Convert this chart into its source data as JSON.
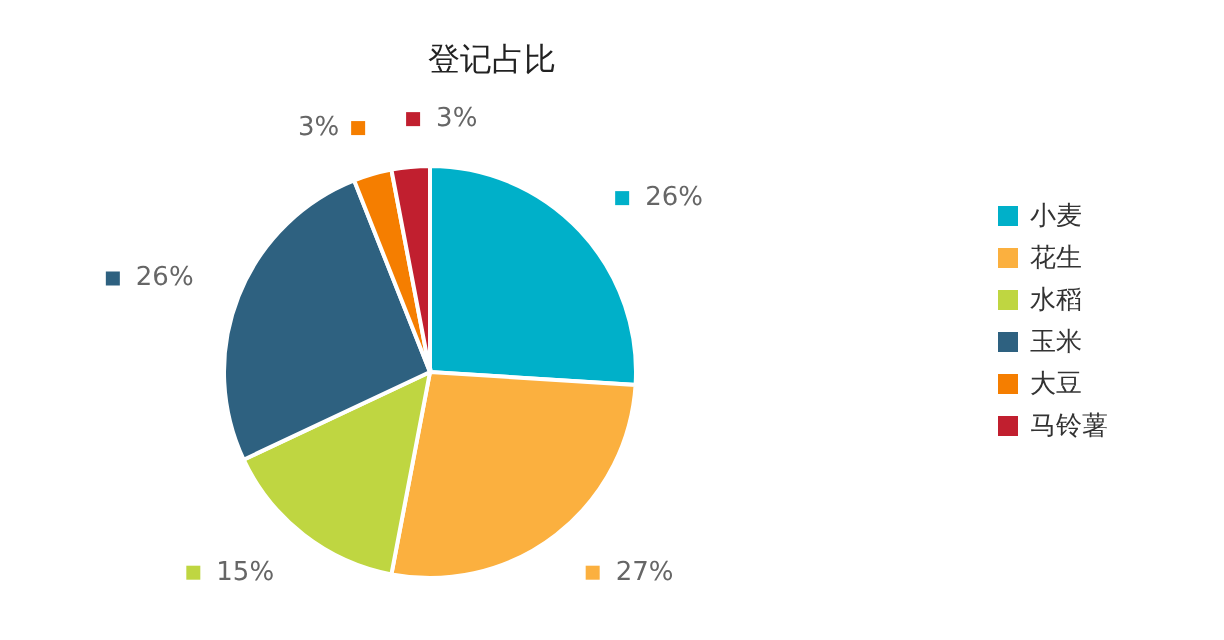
{
  "chart_data": {
    "type": "pie",
    "title": "登记占比",
    "categories": [
      "小麦",
      "花生",
      "水稻",
      "玉米",
      "大豆",
      "马铃薯"
    ],
    "values": [
      26,
      27,
      15,
      26,
      3,
      3
    ],
    "colors": [
      "#00b0c9",
      "#fbb03f",
      "#bfd641",
      "#2e6180",
      "#f57e00",
      "#c11f2f"
    ],
    "value_labels": [
      "26%",
      "27%",
      "15%",
      "26%",
      "3%",
      "3%"
    ],
    "legend": "right"
  }
}
